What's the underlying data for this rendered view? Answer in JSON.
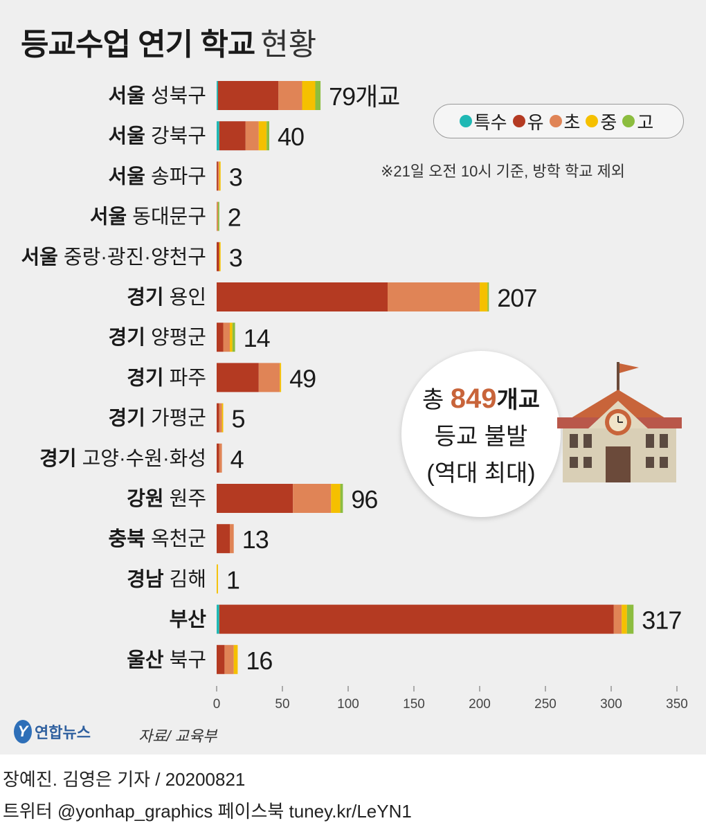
{
  "title": {
    "bold": "등교수업 연기 학교",
    "light": "현황"
  },
  "legend": [
    {
      "label": "특수",
      "color": "#1fb8b4"
    },
    {
      "label": "유",
      "color": "#b43a22"
    },
    {
      "label": "초",
      "color": "#e08456"
    },
    {
      "label": "중",
      "color": "#f5c000"
    },
    {
      "label": "고",
      "color": "#8cbd3f"
    }
  ],
  "note": "※21일 오전 10시 기준, 방학 학교 제외",
  "callout": {
    "prefix": "총",
    "number": "849",
    "unit": "개교",
    "line2": "등교 불발",
    "line3": "(역대 최대)"
  },
  "chart_data": {
    "type": "bar",
    "orientation": "horizontal",
    "stacked": true,
    "title": "등교수업 연기 학교 현황",
    "xlim": [
      0,
      350
    ],
    "xticks": [
      0,
      50,
      100,
      150,
      200,
      250,
      300,
      350
    ],
    "categories": [
      {
        "region": "서울",
        "district": "성북구",
        "label": "79개교"
      },
      {
        "region": "서울",
        "district": "강북구",
        "label": "40"
      },
      {
        "region": "서울",
        "district": "송파구",
        "label": "3"
      },
      {
        "region": "서울",
        "district": "동대문구",
        "label": "2"
      },
      {
        "region": "서울",
        "district": "중랑·광진·양천구",
        "label": "3"
      },
      {
        "region": "경기",
        "district": "용인",
        "label": "207"
      },
      {
        "region": "경기",
        "district": "양평군",
        "label": "14"
      },
      {
        "region": "경기",
        "district": "파주",
        "label": "49"
      },
      {
        "region": "경기",
        "district": "가평군",
        "label": "5"
      },
      {
        "region": "경기",
        "district": "고양·수원·화성",
        "label": "4"
      },
      {
        "region": "강원",
        "district": "원주",
        "label": "96"
      },
      {
        "region": "충북",
        "district": "옥천군",
        "label": "13"
      },
      {
        "region": "경남",
        "district": "김해",
        "label": "1"
      },
      {
        "region": "부산",
        "district": "",
        "label": "317"
      },
      {
        "region": "울산",
        "district": "북구",
        "label": "16"
      }
    ],
    "totals": [
      79,
      40,
      3,
      2,
      3,
      207,
      14,
      49,
      5,
      4,
      96,
      13,
      1,
      317,
      16
    ],
    "series": [
      {
        "name": "특수",
        "color": "#1fb8b4",
        "values": [
          1,
          2,
          0,
          0,
          0,
          0,
          0,
          0,
          0,
          0,
          0,
          0,
          0,
          2,
          0
        ]
      },
      {
        "name": "유",
        "color": "#b43a22",
        "values": [
          46,
          20,
          1,
          0,
          2,
          130,
          5,
          32,
          2,
          2,
          58,
          10,
          0,
          300,
          6
        ]
      },
      {
        "name": "초",
        "color": "#e08456",
        "values": [
          18,
          10,
          1,
          1,
          0,
          70,
          5,
          16,
          2,
          2,
          29,
          3,
          0,
          6,
          7
        ]
      },
      {
        "name": "중",
        "color": "#f5c000",
        "values": [
          10,
          6,
          1,
          0,
          1,
          6,
          2,
          1,
          1,
          0,
          7,
          0,
          1,
          4,
          3
        ]
      },
      {
        "name": "고",
        "color": "#8cbd3f",
        "values": [
          4,
          2,
          0,
          1,
          0,
          1,
          2,
          0,
          0,
          0,
          2,
          0,
          0,
          5,
          0
        ]
      }
    ]
  },
  "logo": {
    "mark": "Y",
    "name": "연합뉴스"
  },
  "source": "자료/ 교육부",
  "credit": "장예진. 김영은 기자 / 20200821",
  "social": "트위터 @yonhap_graphics  페이스북 tuney.kr/LeYN1"
}
